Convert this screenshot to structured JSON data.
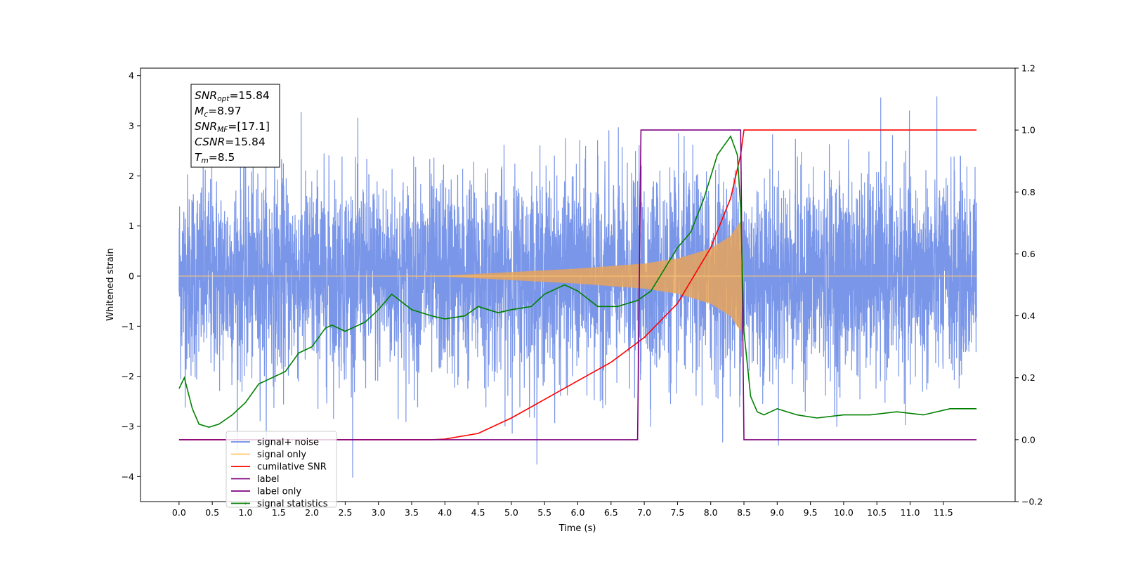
{
  "chart_data": {
    "type": "line",
    "xlabel": "Time (s)",
    "ylabel": "Whitened strain",
    "xlim": [
      -0.58,
      12.58
    ],
    "ylim": [
      -4.5,
      4.15
    ],
    "y2lim": [
      -0.2,
      1.2
    ],
    "x_ticks": [
      "0.0",
      "0.5",
      "1.0",
      "1.5",
      "2.0",
      "2.5",
      "3.0",
      "3.5",
      "4.0",
      "4.5",
      "5.0",
      "5.5",
      "6.0",
      "6.5",
      "7.0",
      "7.5",
      "8.0",
      "8.5",
      "9.0",
      "9.5",
      "10.0",
      "10.5",
      "11.0",
      "11.5"
    ],
    "y_ticks": [
      "4",
      "3",
      "2",
      "1",
      "0",
      "−1",
      "−2",
      "−3",
      "−4"
    ],
    "y2_ticks": [
      "1.2",
      "1.0",
      "0.8",
      "0.6",
      "0.4",
      "0.2",
      "0.0",
      "−0.2"
    ],
    "annotation": {
      "lines": [
        {
          "base": "SNR",
          "sub": "opt",
          "value": "=15.84"
        },
        {
          "base": "M",
          "sub": "c",
          "value": "=8.97"
        },
        {
          "base": "SNR",
          "sub": "MF",
          "value": "=[17.1]"
        },
        {
          "base": "CSNR",
          "sub": "",
          "value": "=15.84"
        },
        {
          "base": "T",
          "sub": "m",
          "value": "=8.5"
        }
      ]
    },
    "legend": {
      "placement": "lower-left",
      "entries": [
        {
          "label": "signal+ noise",
          "color": "#6c8be6"
        },
        {
          "label": "signal only",
          "color": "#ffc66e"
        },
        {
          "label": "cumilative SNR",
          "color": "#ff0000"
        },
        {
          "label": "label",
          "color": "#800080"
        },
        {
          "label": "label only",
          "color": "#800080"
        },
        {
          "label": "signal statistics",
          "color": "#008000"
        }
      ]
    },
    "series": [
      {
        "name": "signal+ noise",
        "axis": "left",
        "color": "#6c8be6",
        "description": "white noise around 0, spread about ±2, peaks near ±3.7",
        "x_range": [
          0.0,
          12.0
        ]
      },
      {
        "name": "signal only",
        "axis": "left",
        "color": "#e8a55a",
        "description": "chirp envelope growing toward merger",
        "envelope": {
          "x": [
            0.0,
            4.0,
            5.0,
            6.0,
            7.0,
            7.5,
            8.0,
            8.3,
            8.45,
            8.5,
            12.0
          ],
          "y": [
            0.0,
            0.01,
            0.08,
            0.15,
            0.25,
            0.35,
            0.55,
            0.8,
            1.1,
            0.0,
            0.0
          ]
        }
      },
      {
        "name": "cumilative SNR",
        "axis": "right",
        "color": "#ff0000",
        "x": [
          0.0,
          3.8,
          4.0,
          4.5,
          5.0,
          5.5,
          6.0,
          6.5,
          7.0,
          7.5,
          8.0,
          8.3,
          8.45,
          8.5,
          12.0
        ],
        "y": [
          0.0,
          0.0,
          0.002,
          0.02,
          0.07,
          0.13,
          0.19,
          0.25,
          0.33,
          0.44,
          0.62,
          0.78,
          0.92,
          1.0,
          1.0
        ]
      },
      {
        "name": "label",
        "axis": "right",
        "color": "#800080",
        "x": [
          0.0,
          6.9,
          6.95,
          8.45,
          8.5,
          12.0
        ],
        "y": [
          0.0,
          0.0,
          1.0,
          1.0,
          0.0,
          0.0
        ]
      },
      {
        "name": "signal statistics",
        "axis": "right",
        "color": "#008000",
        "x": [
          0.0,
          0.08,
          0.2,
          0.3,
          0.45,
          0.6,
          0.8,
          1.0,
          1.2,
          1.4,
          1.6,
          1.8,
          2.0,
          2.2,
          2.3,
          2.5,
          2.8,
          3.0,
          3.2,
          3.5,
          3.8,
          4.0,
          4.3,
          4.5,
          4.8,
          5.0,
          5.3,
          5.5,
          5.8,
          6.0,
          6.3,
          6.6,
          6.9,
          7.1,
          7.3,
          7.5,
          7.7,
          7.9,
          8.0,
          8.1,
          8.2,
          8.3,
          8.4,
          8.45,
          8.5,
          8.6,
          8.7,
          8.8,
          9.0,
          9.3,
          9.6,
          10.0,
          10.4,
          10.8,
          11.2,
          11.6,
          12.0
        ],
        "y": [
          0.165,
          0.2,
          0.1,
          0.05,
          0.04,
          0.05,
          0.08,
          0.12,
          0.18,
          0.2,
          0.22,
          0.28,
          0.3,
          0.36,
          0.37,
          0.35,
          0.38,
          0.42,
          0.47,
          0.42,
          0.4,
          0.39,
          0.4,
          0.43,
          0.41,
          0.42,
          0.43,
          0.47,
          0.5,
          0.48,
          0.43,
          0.43,
          0.45,
          0.48,
          0.55,
          0.62,
          0.67,
          0.78,
          0.85,
          0.92,
          0.95,
          0.98,
          0.92,
          0.75,
          0.35,
          0.14,
          0.09,
          0.08,
          0.1,
          0.08,
          0.07,
          0.08,
          0.08,
          0.09,
          0.08,
          0.1,
          0.1
        ]
      }
    ]
  }
}
